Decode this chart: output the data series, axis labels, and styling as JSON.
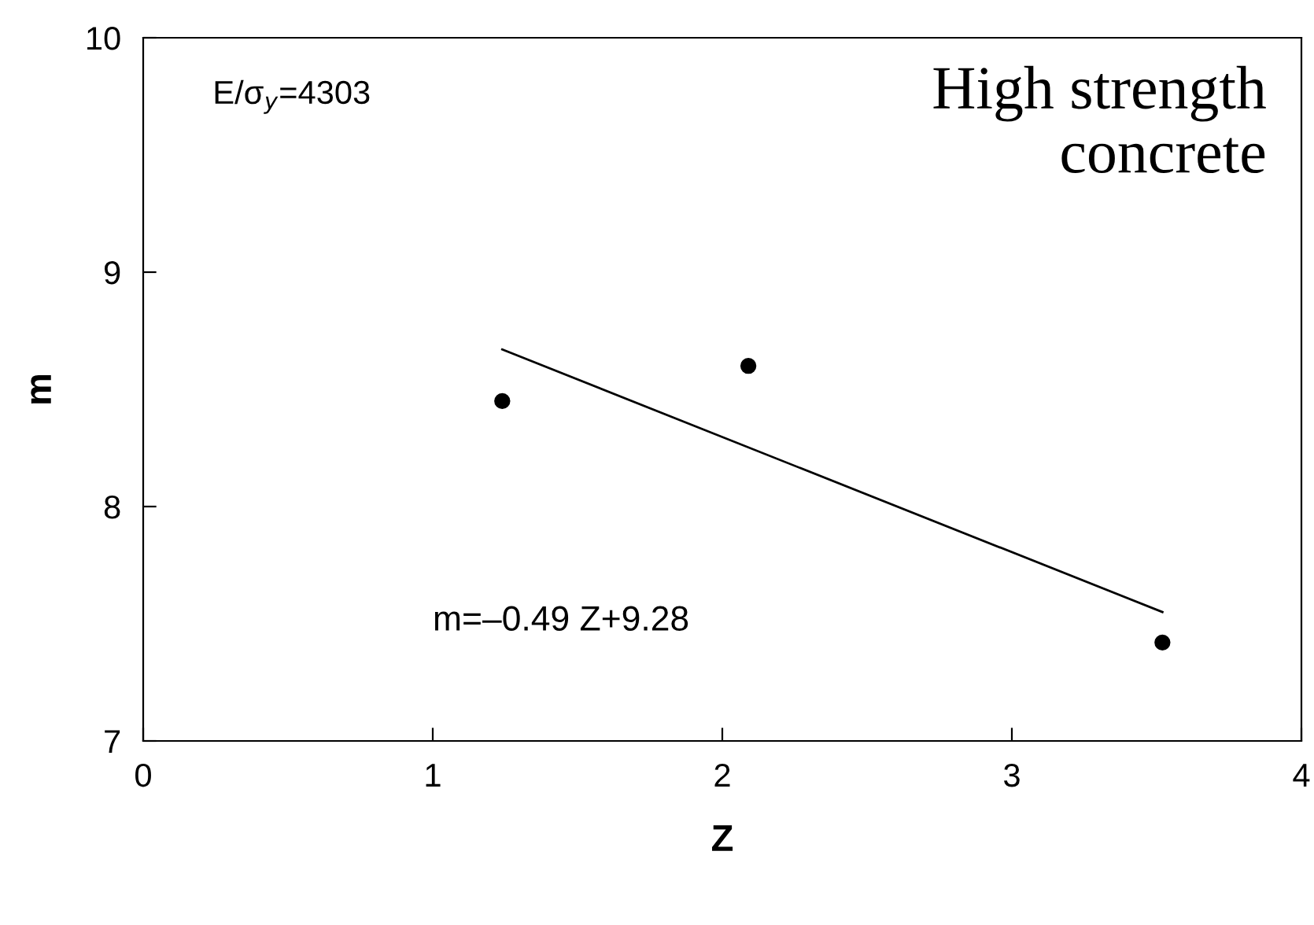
{
  "chart_data": {
    "type": "scatter",
    "xlabel": "Z",
    "ylabel": "m",
    "xlim": [
      0,
      4
    ],
    "xticks": [
      0,
      1,
      2,
      3,
      4
    ],
    "ylim": [
      7,
      10
    ],
    "yticks": [
      7,
      8,
      9,
      10
    ],
    "grid": false,
    "legend": false,
    "series": [
      {
        "marker": "circle",
        "color": "#000000",
        "x": [
          1.24,
          2.09,
          3.52
        ],
        "values": [
          8.45,
          8.6,
          7.42
        ]
      },
      {
        "type": "line",
        "color": "#000000",
        "x": [
          1.24,
          3.52
        ],
        "values": [
          8.67,
          7.55
        ],
        "line_style": "solid",
        "marker": "none"
      }
    ],
    "annotations": [
      "E/σ$_{y}$=4303",
      "High strength\nconcrete",
      "m=–0.49 Z+9.28"
    ]
  }
}
